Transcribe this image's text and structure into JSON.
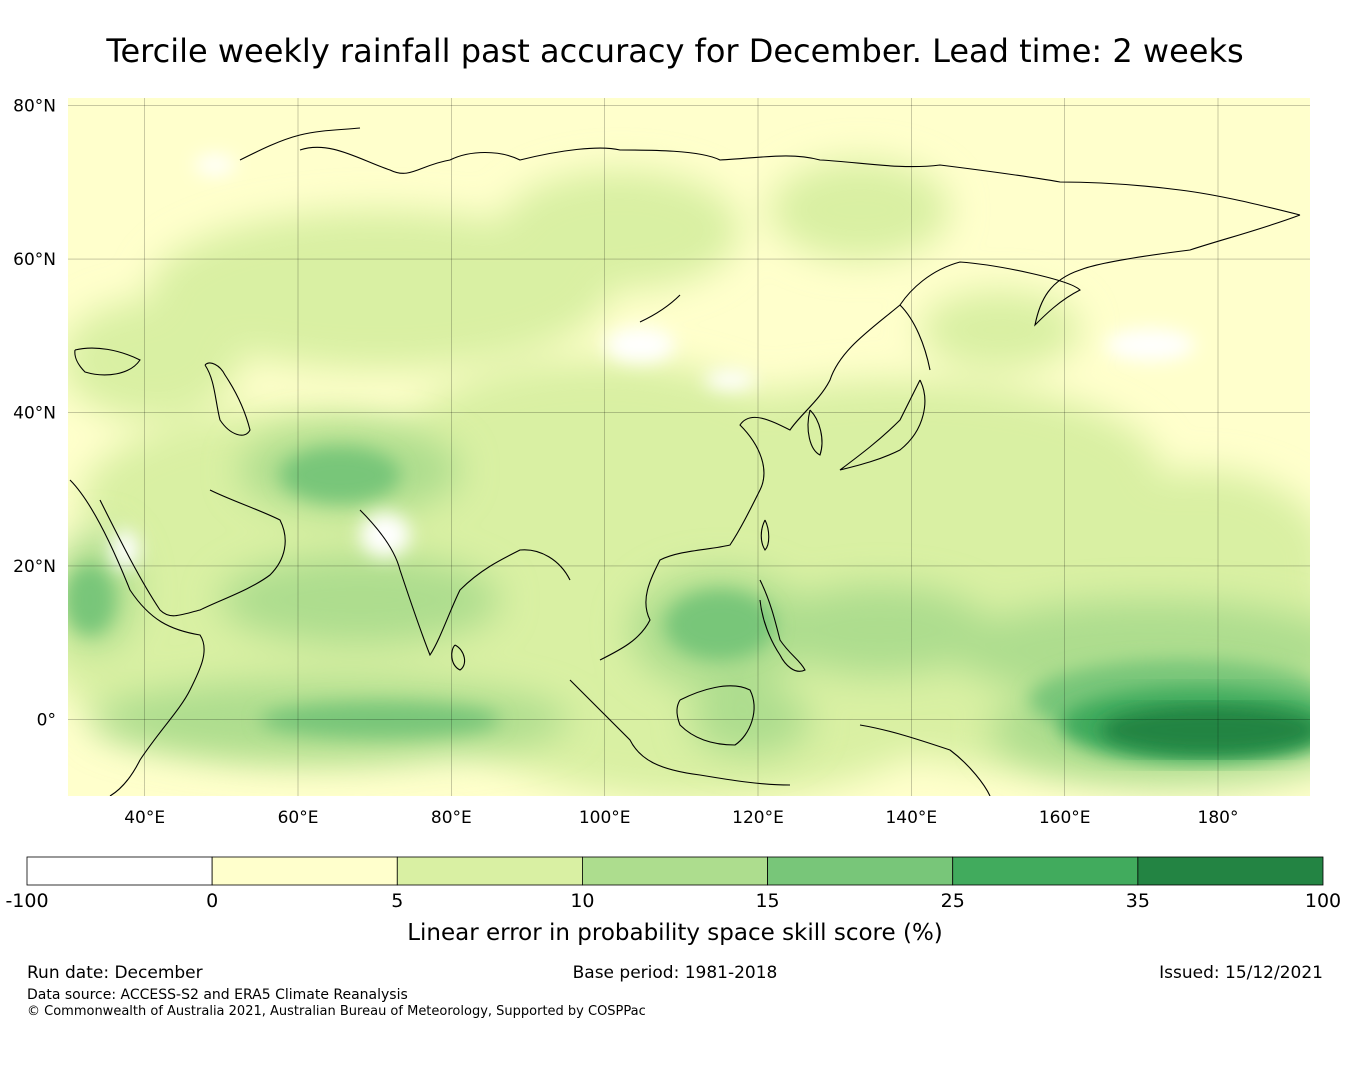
{
  "title": "Tercile weekly rainfall past accuracy for December. Lead time: 2 weeks",
  "map": {
    "lat_ticks": [
      "80°N",
      "60°N",
      "40°N",
      "20°N",
      "0°"
    ],
    "lon_ticks": [
      "40°E",
      "60°E",
      "80°E",
      "100°E",
      "120°E",
      "140°E",
      "160°E",
      "180°"
    ],
    "lat_values": [
      80,
      60,
      40,
      20,
      0
    ],
    "lon_values": [
      40,
      60,
      80,
      100,
      120,
      140,
      160,
      180
    ],
    "extent": {
      "lon_min": 30,
      "lon_max": 192,
      "lat_min": -10,
      "lat_max": 81
    }
  },
  "colorbar": {
    "boundaries": [
      "-100",
      "0",
      "5",
      "10",
      "15",
      "25",
      "35",
      "100"
    ],
    "colors": [
      "#ffffff",
      "#ffffcc",
      "#d9f0a3",
      "#addd8e",
      "#78c679",
      "#41ab5d",
      "#238443"
    ],
    "label": "Linear error in probability space skill score (%)"
  },
  "footer": {
    "run_date": "Run date: December",
    "base_period": "Base period: 1981-2018",
    "issued": "Issued: 15/12/2021",
    "data_source": "Data source: ACCESS-S2 and ERA5 Climate Reanalysis",
    "copyright": "© Commonwealth of Australia 2021, Australian Bureau of Meteorology, Supported by COSPPac"
  }
}
